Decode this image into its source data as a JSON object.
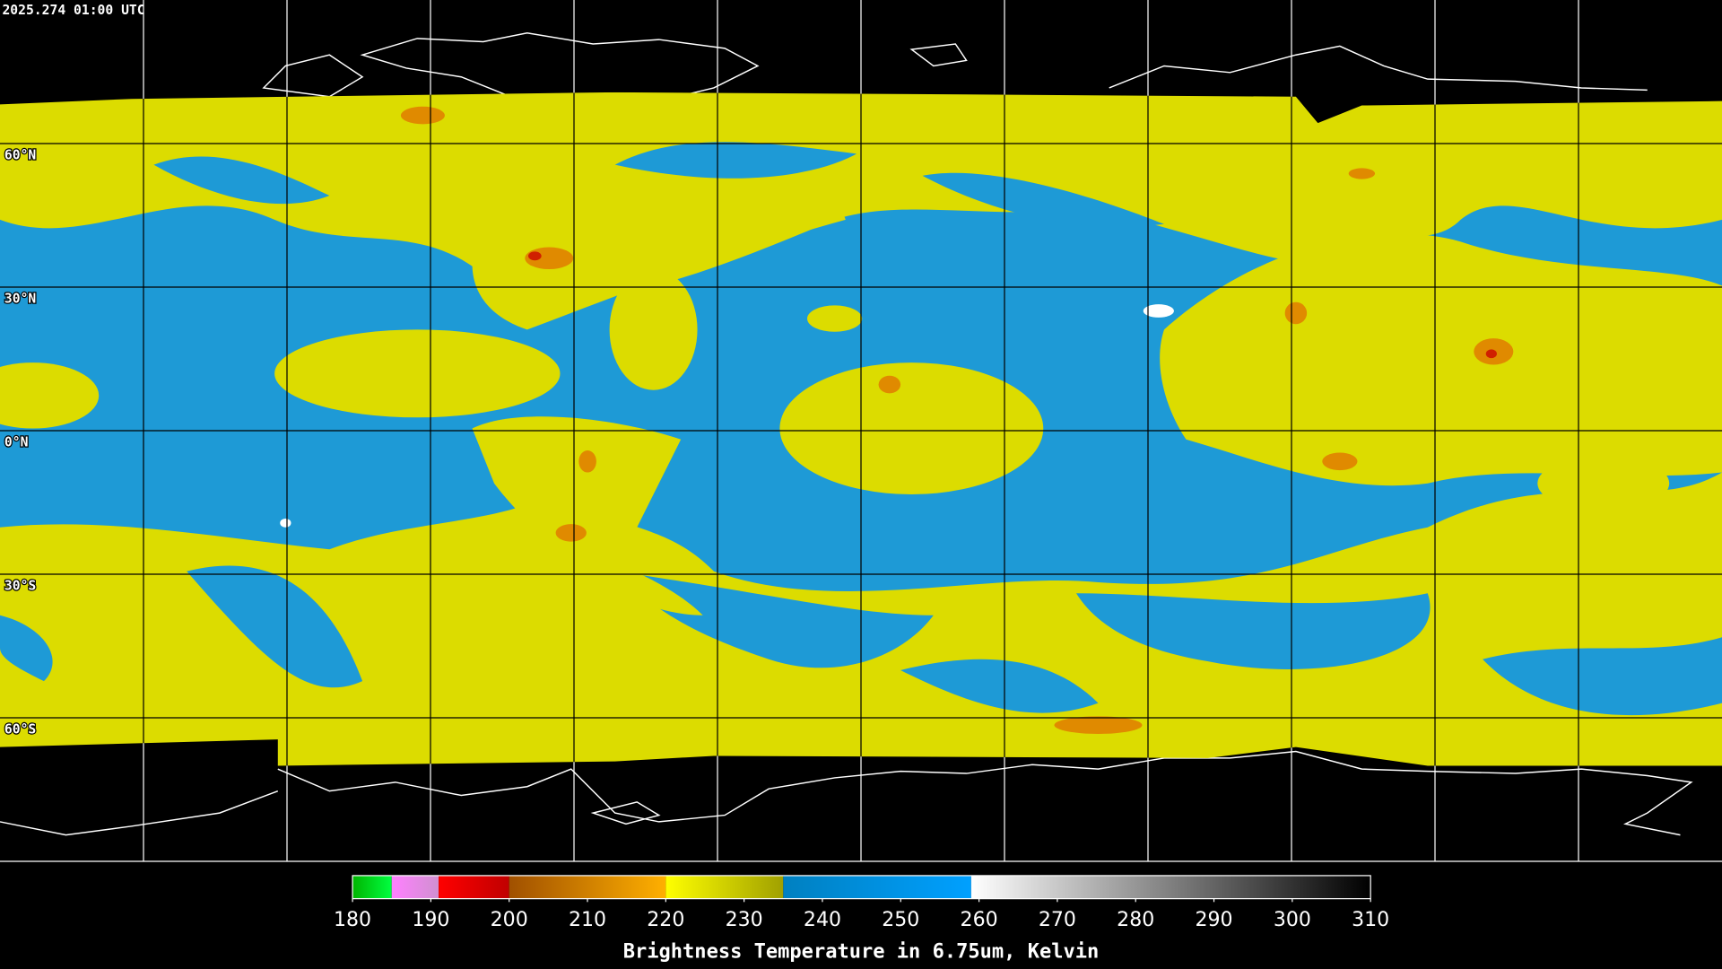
{
  "header": {
    "timestamp": "2025.274 01:00 UTC"
  },
  "map": {
    "lat_labels": [
      "60°N",
      "30°N",
      "0°N",
      "30°S",
      "60°S"
    ]
  },
  "colorbar": {
    "title": "Brightness Temperature in 6.75um, Kelvin",
    "range": [
      180,
      310
    ],
    "ticks": [
      180,
      190,
      200,
      210,
      220,
      230,
      240,
      250,
      260,
      270,
      280,
      290,
      300,
      310
    ],
    "segments": [
      {
        "from": 180,
        "to": 185,
        "colors": [
          "#00b400",
          "#00ff40"
        ]
      },
      {
        "from": 185,
        "to": 191,
        "colors": [
          "#ff80ff",
          "#d090d0"
        ]
      },
      {
        "from": 191,
        "to": 200,
        "colors": [
          "#ff0000",
          "#c00000"
        ]
      },
      {
        "from": 200,
        "to": 220,
        "colors": [
          "#a05000",
          "#ffb000"
        ]
      },
      {
        "from": 220,
        "to": 235,
        "colors": [
          "#ffff00",
          "#a0a000"
        ]
      },
      {
        "from": 235,
        "to": 259,
        "colors": [
          "#0080c0",
          "#00a0ff"
        ]
      },
      {
        "from": 259,
        "to": 310,
        "colors": [
          "#ffffff",
          "#000000"
        ]
      }
    ]
  }
}
